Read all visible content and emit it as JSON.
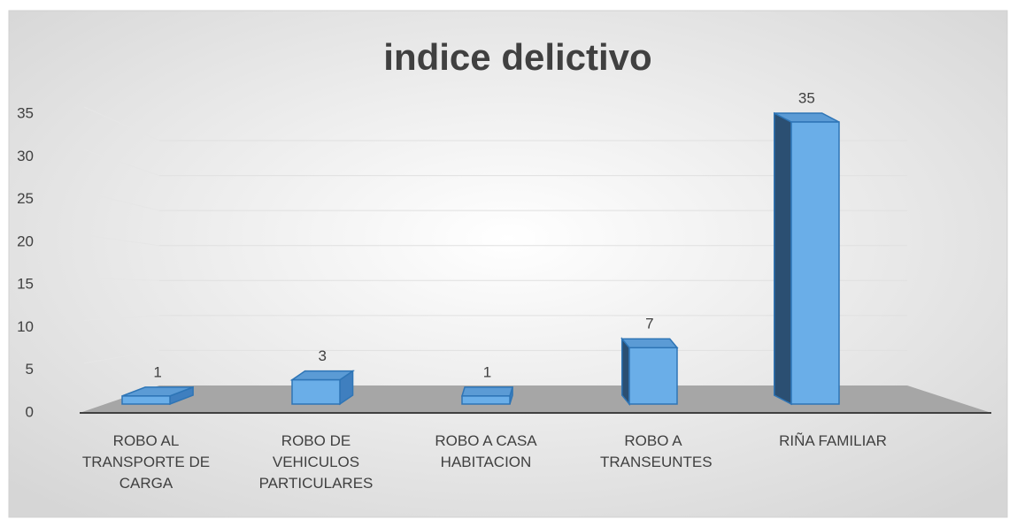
{
  "chart_data": {
    "type": "bar3d",
    "title": "indice delictivo",
    "categories": [
      "ROBO AL TRANSPORTE DE CARGA",
      "ROBO DE VEHICULOS PARTICULARES",
      "ROBO A CASA HABITACION",
      "ROBO A TRANSEUNTES",
      "RIÑA FAMILIAR"
    ],
    "values": [
      1,
      3,
      1,
      7,
      35
    ],
    "color": "#6aaee8",
    "ylim": [
      0,
      35
    ],
    "yticks": [
      0,
      5,
      10,
      15,
      20,
      25,
      30,
      35
    ],
    "grid": true
  }
}
